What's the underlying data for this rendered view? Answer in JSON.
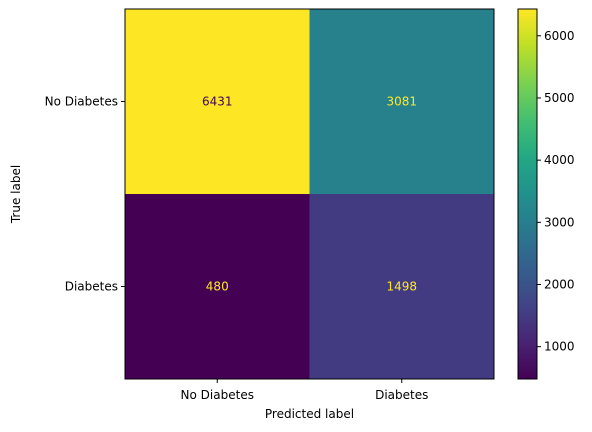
{
  "chart_data": {
    "type": "heatmap",
    "title": "",
    "xlabel": "Predicted label",
    "ylabel": "True label",
    "x_categories": [
      "No Diabetes",
      "Diabetes"
    ],
    "y_categories": [
      "No Diabetes",
      "Diabetes"
    ],
    "values": [
      [
        6431,
        3081
      ],
      [
        480,
        1498
      ]
    ],
    "colormap": "viridis",
    "colorbar": {
      "range": [
        480,
        6431
      ],
      "ticks": [
        1000,
        2000,
        3000,
        4000,
        5000,
        6000
      ]
    },
    "grid": false
  }
}
